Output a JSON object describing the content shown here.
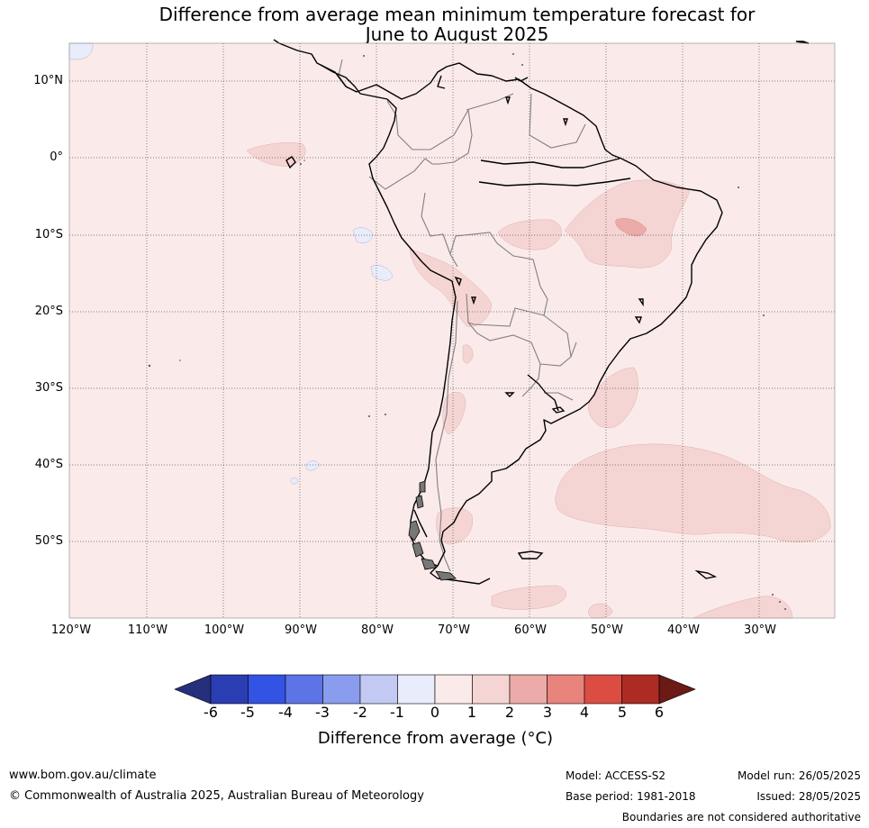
{
  "title_line1": "Difference from average mean minimum temperature forecast for",
  "title_line2": "June to August 2025",
  "map": {
    "lat_labels": [
      "10°N",
      "0°",
      "10°S",
      "20°S",
      "30°S",
      "40°S",
      "50°S"
    ],
    "lon_labels": [
      "120°W",
      "110°W",
      "100°W",
      "90°W",
      "80°W",
      "70°W",
      "60°W",
      "50°W",
      "40°W",
      "30°W"
    ],
    "colors": {
      "anomaly_0_to_1": "#fbeaea",
      "anomaly_1_to_2": "#f5d5d3",
      "anomaly_2_to_3": "#ecaba8",
      "anomaly_minus1_to_0": "#e9edfa",
      "coastline": "#000000",
      "borders": "#808080"
    }
  },
  "legend": {
    "ticks": [
      "-6",
      "-5",
      "-4",
      "-3",
      "-2",
      "-1",
      "0",
      "1",
      "2",
      "3",
      "4",
      "5",
      "6"
    ],
    "colors": [
      "#262f7c",
      "#2a3db2",
      "#3253e3",
      "#5c74e6",
      "#8a9cee",
      "#c2caf3",
      "#e9ecfa",
      "#fbeaea",
      "#f5d5d3",
      "#ecaba8",
      "#e8847c",
      "#db4c42",
      "#ac2b23",
      "#6b1a16"
    ],
    "label": "Difference from average (°C)"
  },
  "footer": {
    "url": "www.bom.gov.au/climate",
    "copyright": "© Commonwealth of Australia 2025, Australian Bureau of Meteorology",
    "model": "Model: ACCESS-S2",
    "base_period": "Base period: 1981-2018",
    "model_run": "Model run: 26/05/2025",
    "issued": "Issued: 28/05/2025",
    "disclaimer": "Boundaries are not considered authoritative"
  }
}
